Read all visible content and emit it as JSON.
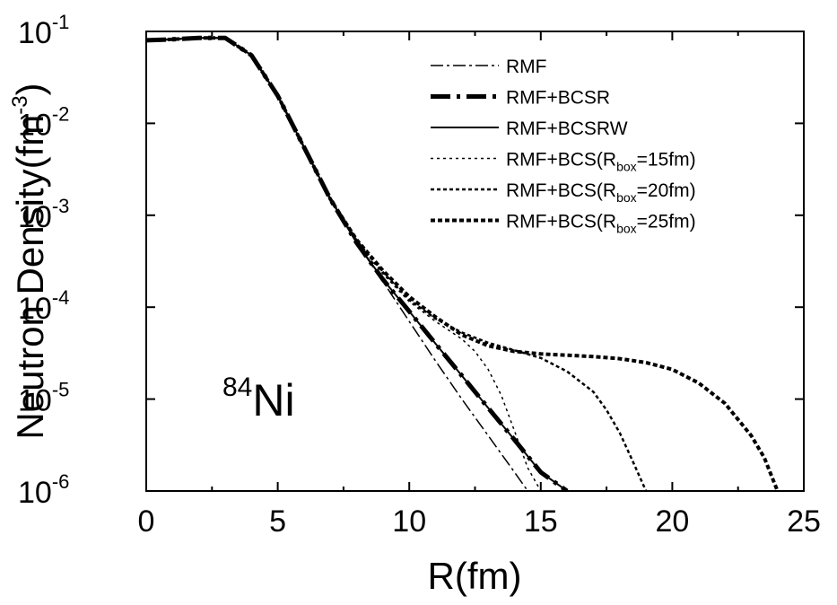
{
  "chart_data": {
    "type": "line",
    "xlabel": "R(fm)",
    "ylabel": {
      "base": "Neutron Density(fm",
      "sup": "-3",
      "close": ")"
    },
    "xlim": [
      0,
      25
    ],
    "ylim": [
      1e-06,
      0.1
    ],
    "yscale": "log",
    "grid": false,
    "legend_position": "top-right",
    "x_ticks": [
      0,
      5,
      10,
      15,
      20,
      25
    ],
    "x_tick_labels": [
      "0",
      "5",
      "10",
      "15",
      "20",
      "25"
    ],
    "y_ticks": [
      {
        "value": 0.1,
        "base": "10",
        "exp": "-1"
      },
      {
        "value": 0.01,
        "base": "10",
        "exp": "-2"
      },
      {
        "value": 0.001,
        "base": "10",
        "exp": "-3"
      },
      {
        "value": 0.0001,
        "base": "10",
        "exp": "-4"
      },
      {
        "value": 1e-05,
        "base": "10",
        "exp": "-5"
      },
      {
        "value": 1e-06,
        "base": "10",
        "exp": "-6"
      }
    ],
    "annotation": {
      "sup": "84",
      "text": "Ni"
    },
    "series": [
      {
        "name": "RMF",
        "legend": {
          "text": "RMF",
          "sub": "",
          "after": ""
        },
        "style": "dash-dot",
        "x": [
          0,
          1,
          2,
          3,
          4,
          5,
          6,
          7,
          8,
          9,
          10,
          11,
          12,
          13,
          14,
          15
        ],
        "y": [
          0.08,
          0.082,
          0.085,
          0.085,
          0.055,
          0.02,
          0.0055,
          0.0015,
          0.0005,
          0.00019,
          7e-05,
          2.6e-05,
          1e-05,
          4e-06,
          1.6e-06,
          6.3e-07
        ]
      },
      {
        "name": "RMF+BCSR",
        "legend": {
          "text": "RMF+BCSR",
          "sub": "",
          "after": ""
        },
        "style": "long-dash-dot",
        "x": [
          0,
          1,
          2,
          3,
          4,
          5,
          6,
          7,
          8,
          9,
          10,
          11,
          12,
          13,
          14,
          15,
          16
        ],
        "y": [
          0.08,
          0.082,
          0.085,
          0.085,
          0.055,
          0.02,
          0.0055,
          0.0015,
          0.0005,
          0.0002,
          9e-05,
          4e-05,
          1.8e-05,
          8e-06,
          3.6e-06,
          1.6e-06,
          1e-06
        ]
      },
      {
        "name": "RMF+BCSRW",
        "legend": {
          "text": "RMF+BCSRW",
          "sub": "",
          "after": ""
        },
        "style": "solid",
        "x": [
          0,
          1,
          2,
          3,
          4,
          5,
          6,
          7,
          8,
          9,
          10,
          11,
          12,
          13,
          14,
          15,
          16
        ],
        "y": [
          0.08,
          0.082,
          0.085,
          0.085,
          0.055,
          0.02,
          0.0055,
          0.0015,
          0.0005,
          0.0002,
          9e-05,
          4e-05,
          1.8e-05,
          8e-06,
          3.6e-06,
          1.6e-06,
          1e-06
        ]
      },
      {
        "name": "RMF+BCS(Rbox=15fm)",
        "legend": {
          "text": "RMF+BCS(R",
          "sub": "box",
          "after": "=15fm)"
        },
        "style": "fine-dot",
        "x": [
          0,
          1,
          2,
          3,
          4,
          5,
          6,
          7,
          8,
          9,
          10,
          11,
          12,
          12.5,
          13,
          13.5,
          14,
          14.5,
          15
        ],
        "y": [
          0.08,
          0.082,
          0.085,
          0.085,
          0.055,
          0.02,
          0.0055,
          0.0015,
          0.00052,
          0.00023,
          0.000115,
          7e-05,
          4.5e-05,
          3.3e-05,
          2.1e-05,
          1.1e-05,
          4.5e-06,
          1.8e-06,
          1e-06
        ]
      },
      {
        "name": "RMF+BCS(Rbox=20fm)",
        "legend": {
          "text": "RMF+BCS(R",
          "sub": "box",
          "after": "=20fm)"
        },
        "style": "medium-dot",
        "x": [
          0,
          1,
          2,
          3,
          4,
          5,
          6,
          7,
          8,
          9,
          10,
          11,
          12,
          13,
          14,
          15,
          16,
          17,
          17.5,
          18,
          18.5,
          19
        ],
        "y": [
          0.08,
          0.082,
          0.085,
          0.085,
          0.055,
          0.02,
          0.0055,
          0.0015,
          0.00053,
          0.00024,
          0.00012,
          7.5e-05,
          5.3e-05,
          4.1e-05,
          3.4e-05,
          2.8e-05,
          2e-05,
          1.2e-05,
          7.6e-06,
          4.3e-06,
          2.1e-06,
          1e-06
        ]
      },
      {
        "name": "RMF+BCS(Rbox=25fm)",
        "legend": {
          "text": "RMF+BCS(R",
          "sub": "box",
          "after": "=25fm)"
        },
        "style": "bold-dot",
        "x": [
          0,
          1,
          2,
          3,
          4,
          5,
          6,
          7,
          8,
          9,
          10,
          11,
          12,
          13,
          14,
          15,
          16,
          17,
          18,
          19,
          20,
          21,
          22,
          23,
          23.5,
          24
        ],
        "y": [
          0.08,
          0.082,
          0.085,
          0.085,
          0.055,
          0.02,
          0.0055,
          0.0015,
          0.00054,
          0.00025,
          0.00013,
          7.8e-05,
          5e-05,
          3.8e-05,
          3.3e-05,
          3.1e-05,
          3e-05,
          2.9e-05,
          2.75e-05,
          2.5e-05,
          2.1e-05,
          1.5e-05,
          9e-06,
          4e-06,
          2.3e-06,
          1e-06
        ]
      }
    ]
  }
}
